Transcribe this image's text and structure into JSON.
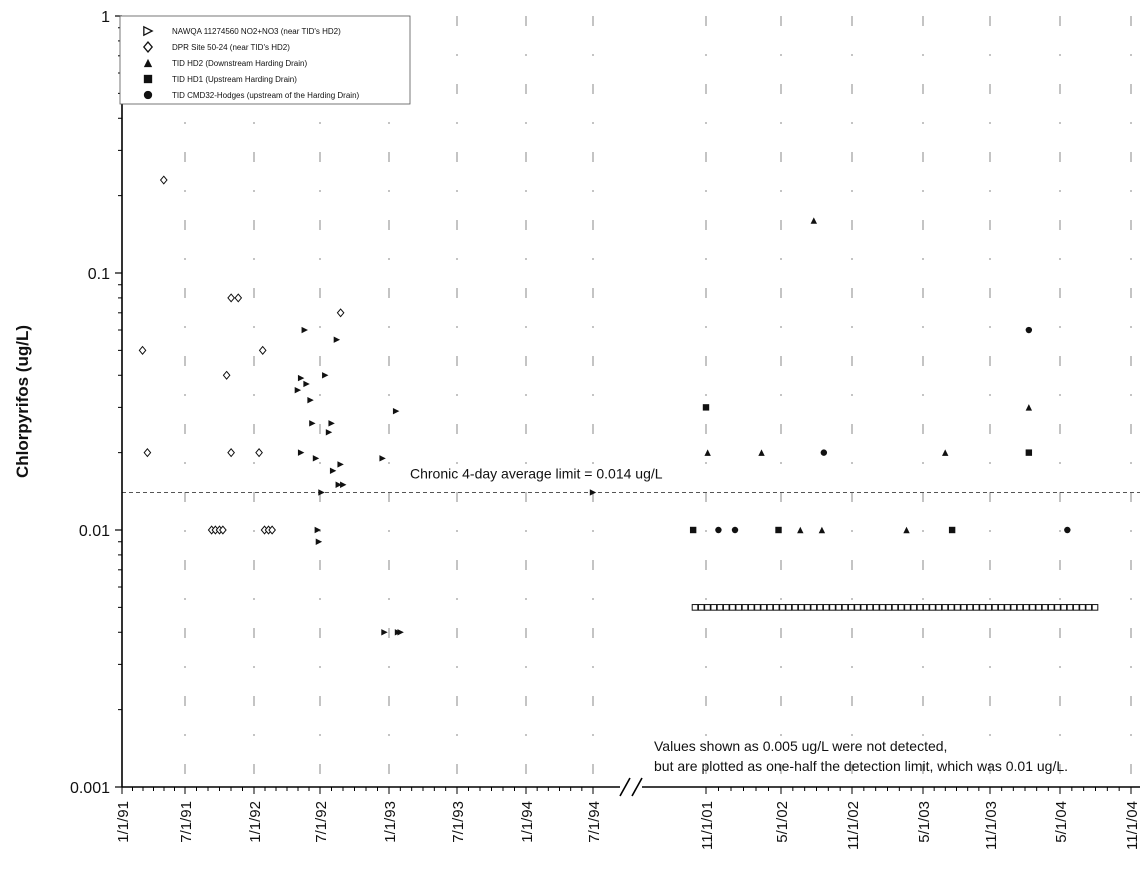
{
  "chart_data": {
    "type": "scatter",
    "ylabel": "Chlorpyrifos (ug/L)",
    "yscale": "log",
    "ylim": [
      0.001,
      1
    ],
    "y_tick_labels": [
      "0.001",
      "0.01",
      "0.1",
      "1"
    ],
    "x_tick_labels_left": [
      "1/1/91",
      "7/1/91",
      "1/1/92",
      "7/1/92",
      "1/1/93",
      "7/1/93",
      "1/1/94",
      "7/1/94"
    ],
    "x_tick_labels_right": [
      "11/1/01",
      "5/1/02",
      "11/1/02",
      "5/1/03",
      "11/1/03",
      "5/1/04",
      "11/1/04"
    ],
    "x_axis_break": "between 7/1/94 and 11/1/01",
    "grid": "vertical dashed lines at x ticks",
    "legend_position": "top-left",
    "limit_line": {
      "value": 0.014,
      "label": "Chronic 4-day average limit = 0.014 ug/L"
    },
    "annotation_lines": [
      "Values shown as 0.005 ug/L were not detected,",
      "but are plotted as one-half the detection limit, which was 0.01 ug/L."
    ],
    "series": [
      {
        "name": "NAWQA 11274560 NO2+NO3 (near TID's HD2)",
        "marker": "triangle-right-filled",
        "points": [
          [
            "1992-05-01",
            0.035
          ],
          [
            "1992-05-10",
            0.039
          ],
          [
            "1992-05-10",
            0.02
          ],
          [
            "1992-05-20",
            0.06
          ],
          [
            "1992-05-25",
            0.037
          ],
          [
            "1992-06-05",
            0.032
          ],
          [
            "1992-06-10",
            0.026
          ],
          [
            "1992-06-20",
            0.019
          ],
          [
            "1992-06-25",
            0.01
          ],
          [
            "1992-06-28",
            0.009
          ],
          [
            "1992-07-05",
            0.014
          ],
          [
            "1992-07-15",
            0.04
          ],
          [
            "1992-07-25",
            0.024
          ],
          [
            "1992-08-01",
            0.026
          ],
          [
            "1992-08-05",
            0.017
          ],
          [
            "1992-08-15",
            0.055
          ],
          [
            "1992-08-20",
            0.015
          ],
          [
            "1992-08-25",
            0.018
          ],
          [
            "1992-09-01",
            0.015
          ],
          [
            "1992-12-15",
            0.019
          ],
          [
            "1992-12-20",
            0.004
          ],
          [
            "1993-01-20",
            0.029
          ],
          [
            "1993-01-25",
            0.004
          ],
          [
            "1993-02-01",
            0.004
          ],
          [
            "1994-07-01",
            0.014
          ]
        ]
      },
      {
        "name": "DPR Site 50-24 (near TID's HD2)",
        "marker": "diamond-open",
        "points": [
          [
            "1991-03-01",
            0.05
          ],
          [
            "1991-03-15",
            0.02
          ],
          [
            "1991-05-01",
            0.23
          ],
          [
            "1991-09-10",
            0.01
          ],
          [
            "1991-09-20",
            0.01
          ],
          [
            "1991-10-01",
            0.01
          ],
          [
            "1991-10-10",
            0.01
          ],
          [
            "1991-10-20",
            0.04
          ],
          [
            "1991-11-01",
            0.02
          ],
          [
            "1991-11-01",
            0.08
          ],
          [
            "1991-11-20",
            0.08
          ],
          [
            "1992-01-15",
            0.02
          ],
          [
            "1992-01-25",
            0.05
          ],
          [
            "1992-01-30",
            0.01
          ],
          [
            "1992-02-10",
            0.01
          ],
          [
            "1992-02-20",
            0.01
          ],
          [
            "1992-08-25",
            0.07
          ]
        ]
      },
      {
        "name": "TID HD2 (Downstream Harding Drain)",
        "marker": "triangle-up-filled",
        "points": [
          [
            "2001-10-28",
            0.005
          ],
          [
            "2001-11-05",
            0.02
          ],
          [
            "2001-11-15",
            0.005
          ],
          [
            "2001-12-05",
            0.005
          ],
          [
            "2001-12-25",
            0.005
          ],
          [
            "2002-01-15",
            0.005
          ],
          [
            "2002-02-05",
            0.005
          ],
          [
            "2002-02-25",
            0.005
          ],
          [
            "2002-03-15",
            0.02
          ],
          [
            "2002-04-05",
            0.005
          ],
          [
            "2002-04-25",
            0.005
          ],
          [
            "2002-05-15",
            0.005
          ],
          [
            "2002-06-01",
            0.005
          ],
          [
            "2002-06-20",
            0.01
          ],
          [
            "2002-06-25",
            0.005
          ],
          [
            "2002-07-25",
            0.16
          ],
          [
            "2002-08-05",
            0.005
          ],
          [
            "2002-08-15",
            0.01
          ],
          [
            "2002-09-01",
            0.005
          ],
          [
            "2002-09-20",
            0.005
          ],
          [
            "2002-10-10",
            0.005
          ],
          [
            "2002-11-01",
            0.005
          ],
          [
            "2002-11-20",
            0.005
          ],
          [
            "2002-12-10",
            0.005
          ],
          [
            "2003-01-01",
            0.005
          ],
          [
            "2003-01-20",
            0.005
          ],
          [
            "2003-02-10",
            0.005
          ],
          [
            "2003-03-01",
            0.005
          ],
          [
            "2003-03-20",
            0.01
          ],
          [
            "2003-04-10",
            0.005
          ],
          [
            "2003-05-01",
            0.005
          ],
          [
            "2003-05-20",
            0.005
          ],
          [
            "2003-06-10",
            0.005
          ],
          [
            "2003-07-01",
            0.02
          ],
          [
            "2003-07-20",
            0.005
          ],
          [
            "2003-08-10",
            0.005
          ],
          [
            "2003-09-01",
            0.005
          ],
          [
            "2003-09-20",
            0.005
          ],
          [
            "2003-10-10",
            0.005
          ],
          [
            "2003-11-01",
            0.005
          ],
          [
            "2003-11-20",
            0.005
          ],
          [
            "2003-12-10",
            0.005
          ],
          [
            "2004-01-01",
            0.005
          ],
          [
            "2004-01-20",
            0.005
          ],
          [
            "2004-02-10",
            0.03
          ],
          [
            "2004-03-01",
            0.005
          ],
          [
            "2004-03-20",
            0.005
          ],
          [
            "2004-04-10",
            0.005
          ],
          [
            "2004-05-01",
            0.005
          ],
          [
            "2004-05-20",
            0.005
          ],
          [
            "2004-06-10",
            0.005
          ],
          [
            "2004-07-01",
            0.005
          ],
          [
            "2004-07-20",
            0.005
          ]
        ]
      },
      {
        "name": "TID HD1 (Upstream Harding Drain)",
        "marker": "square-filled",
        "points": [
          [
            "2001-10-01",
            0.01
          ],
          [
            "2001-11-01",
            0.03
          ],
          [
            "2002-04-25",
            0.01
          ],
          [
            "2003-07-20",
            0.01
          ],
          [
            "2004-02-10",
            0.02
          ]
        ]
      },
      {
        "name": "TID CMD32-Hodges (upstream of the Harding Drain)",
        "marker": "circle-filled",
        "points": [
          [
            "2001-12-01",
            0.01
          ],
          [
            "2002-01-10",
            0.01
          ],
          [
            "2002-08-20",
            0.02
          ],
          [
            "2004-02-10",
            0.06
          ],
          [
            "2004-05-20",
            0.01
          ]
        ]
      }
    ]
  }
}
